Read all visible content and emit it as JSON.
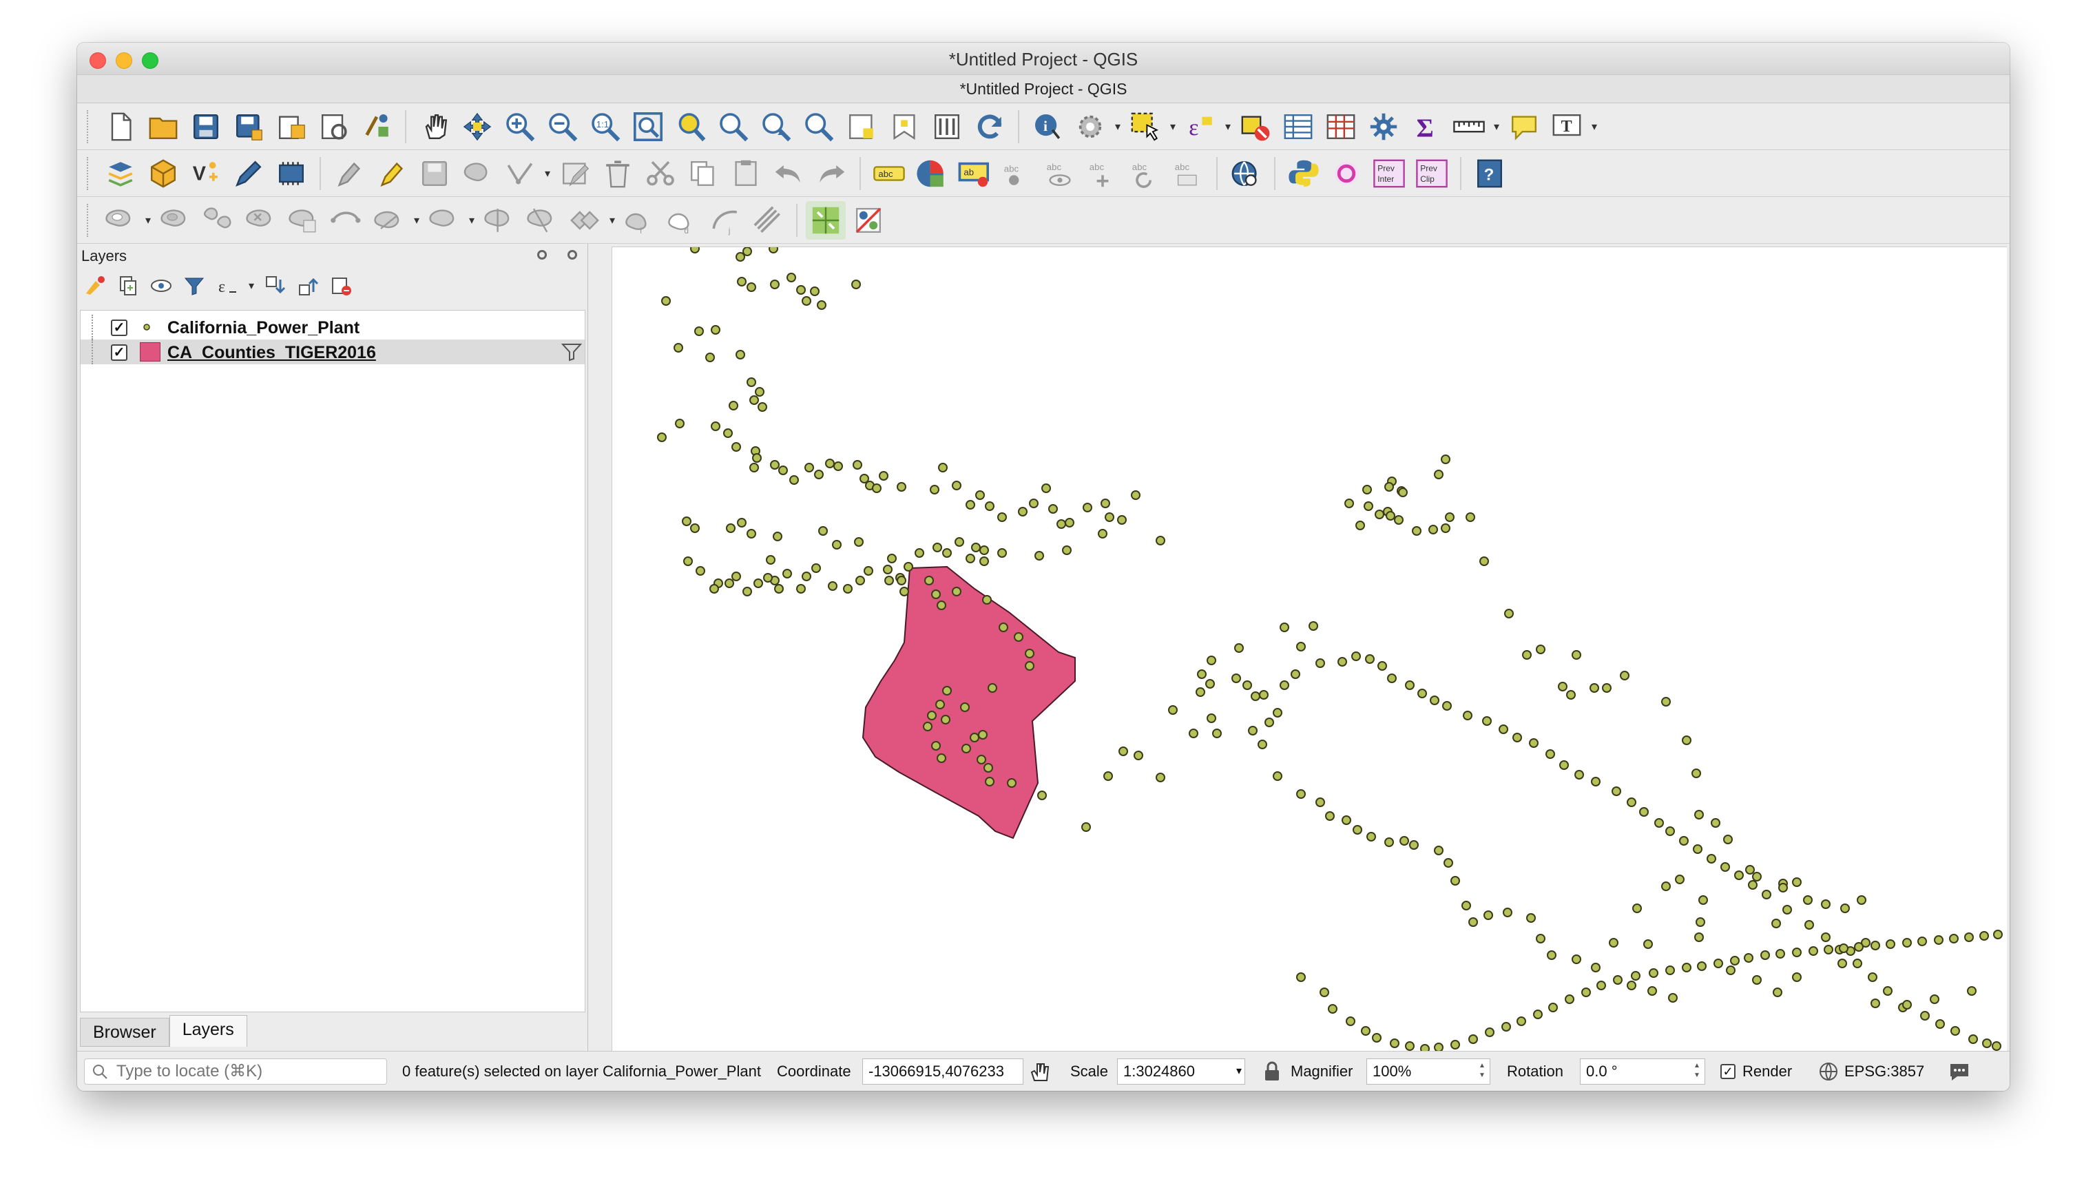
{
  "window": {
    "title": "*Untitled Project - QGIS",
    "subtitle": "*Untitled Project - QGIS"
  },
  "panel": {
    "title": "Layers",
    "layers": [
      {
        "name": "California_Power_Plant",
        "checked": true,
        "symbol": "point-icon"
      },
      {
        "name": "CA_Counties_TIGER2016",
        "checked": true,
        "symbol": "polygon-swatch",
        "color": "#e05480"
      }
    ],
    "tabs": [
      "Browser",
      "Layers"
    ],
    "active_tab": "Layers"
  },
  "status": {
    "locate_placeholder": "Type to locate (⌘K)",
    "selection_msg": "0 feature(s) selected on layer California_Power_Plant",
    "coordinate_label": "Coordinate",
    "coordinate_value": "-13066915,4076233",
    "scale_label": "Scale",
    "scale_value": "1:3024860",
    "magnifier_label": "Magnifier",
    "magnifier_value": "100%",
    "rotation_label": "Rotation",
    "rotation_value": "0.0 °",
    "render_label": "Render",
    "crs_label": "EPSG:3857"
  },
  "map": {
    "point_fill": "#b5c25a",
    "point_stroke": "#3c3a18",
    "polygon_fill": "#e05480",
    "polygon_stroke": "#4a1a28",
    "layer_shown": "California_Power_Plant"
  },
  "icons": {
    "toolbar1": [
      "new-project-icon",
      "open-project-icon",
      "save-project-icon",
      "save-as-icon",
      "print-layout-icon",
      "layout-manager-icon",
      "style-manager-icon",
      "pan-icon",
      "pan-to-selection-icon",
      "zoom-in-icon",
      "zoom-out-icon",
      "zoom-native-icon",
      "zoom-full-icon",
      "zoom-layer-icon",
      "zoom-selection-icon",
      "zoom-last-icon",
      "zoom-next-icon",
      "new-bookmark-icon",
      "show-bookmarks-icon",
      "temporal-controller-icon",
      "refresh-icon",
      "identify-icon",
      "action-icon",
      "select-icon",
      "select-expression-icon",
      "deselect-icon",
      "attribute-table-icon",
      "field-calculator-icon",
      "processing-toolbox-icon",
      "statistics-icon",
      "measure-icon",
      "map-tips-icon",
      "text-annotation-icon"
    ],
    "toolbar2": [
      "data-source-manager-icon",
      "new-geopackage-icon",
      "new-shapefile-icon",
      "digitize-icon",
      "gps-icon",
      "edits-icon",
      "toggle-editing-icon",
      "save-edits-icon",
      "add-feature-icon",
      "vertex-tool-icon",
      "modify-attributes-icon",
      "delete-selected-icon",
      "cut-features-icon",
      "copy-features-icon",
      "paste-features-icon",
      "undo-icon",
      "redo-icon",
      "label-tool-icon",
      "diagram-tool-icon",
      "highlight-labels-icon",
      "pin-label-icon",
      "show-hide-labels-icon",
      "move-label-icon",
      "rotate-label-icon",
      "change-label-icon",
      "metasearch-icon",
      "python-console-icon",
      "qgis2web-icon",
      "prev-inter-icon",
      "prev-clip-icon",
      "help-icon"
    ],
    "toolbar3": [
      "add-ring-icon",
      "fill-ring-icon",
      "add-part-icon",
      "delete-ring-icon",
      "delete-part-icon",
      "simplify-icon",
      "reshape-icon",
      "offset-curve-icon",
      "split-features-icon",
      "split-parts-icon",
      "merge-features-icon",
      "merge-attributes-icon",
      "rotate-point-icon",
      "rotate-feature-icon",
      "tracing-icon",
      "georeferencer-icon",
      "plugin-icon"
    ]
  }
}
